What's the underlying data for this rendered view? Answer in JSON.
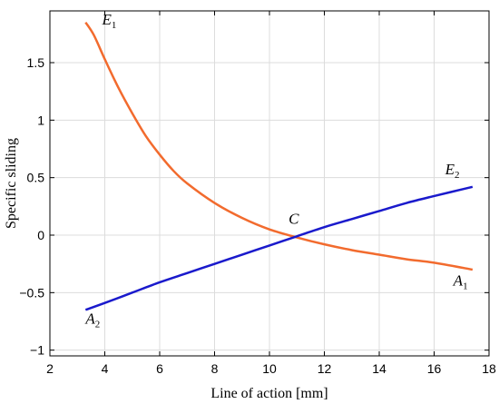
{
  "chart_data": {
    "type": "line",
    "xlabel": "Line of action [mm]",
    "ylabel": "Specific sliding",
    "xlim": [
      2,
      18
    ],
    "ylim": [
      -1.05,
      1.95
    ],
    "x_ticks": [
      "2",
      "4",
      "6",
      "8",
      "10",
      "12",
      "14",
      "16",
      "18"
    ],
    "y_ticks": [
      "−1",
      "−0.5",
      "0",
      "0.5",
      "1",
      "1.5"
    ],
    "x_tick_values": [
      2,
      4,
      6,
      8,
      10,
      12,
      14,
      16,
      18
    ],
    "y_tick_values": [
      -1,
      -0.5,
      0,
      0.5,
      1,
      1.5
    ],
    "grid": true,
    "series": [
      {
        "color": "#f26b2e",
        "x": [
          3.3,
          3.6,
          4.0,
          4.5,
          5.0,
          5.5,
          6.0,
          6.5,
          7.0,
          8.0,
          9.0,
          10.0,
          11.0,
          12.0,
          13.0,
          14.0,
          15.0,
          16.0,
          17.4
        ],
        "y": [
          1.85,
          1.74,
          1.53,
          1.28,
          1.06,
          0.86,
          0.7,
          0.56,
          0.45,
          0.28,
          0.15,
          0.05,
          -0.02,
          -0.08,
          -0.13,
          -0.17,
          -0.21,
          -0.24,
          -0.3
        ]
      },
      {
        "color": "#1a1acc",
        "x": [
          3.3,
          4.0,
          5.0,
          6.0,
          7.0,
          8.0,
          9.0,
          10.0,
          11.0,
          12.0,
          13.0,
          14.0,
          15.0,
          16.0,
          17.4
        ],
        "y": [
          -0.65,
          -0.59,
          -0.5,
          -0.41,
          -0.33,
          -0.25,
          -0.17,
          -0.09,
          -0.01,
          0.07,
          0.14,
          0.21,
          0.28,
          0.34,
          0.42
        ]
      }
    ],
    "annotations": [
      {
        "main": "E",
        "sub": "1",
        "x": 3.9,
        "y": 1.83,
        "anchor": "start"
      },
      {
        "main": "A",
        "sub": "1",
        "x": 16.7,
        "y": -0.44,
        "anchor": "start"
      },
      {
        "main": "E",
        "sub": "2",
        "x": 16.4,
        "y": 0.53,
        "anchor": "start"
      },
      {
        "main": "A",
        "sub": "2",
        "x": 3.3,
        "y": -0.77,
        "anchor": "start"
      },
      {
        "main": "C",
        "sub": "",
        "x": 10.7,
        "y": 0.1,
        "anchor": "start"
      }
    ]
  }
}
